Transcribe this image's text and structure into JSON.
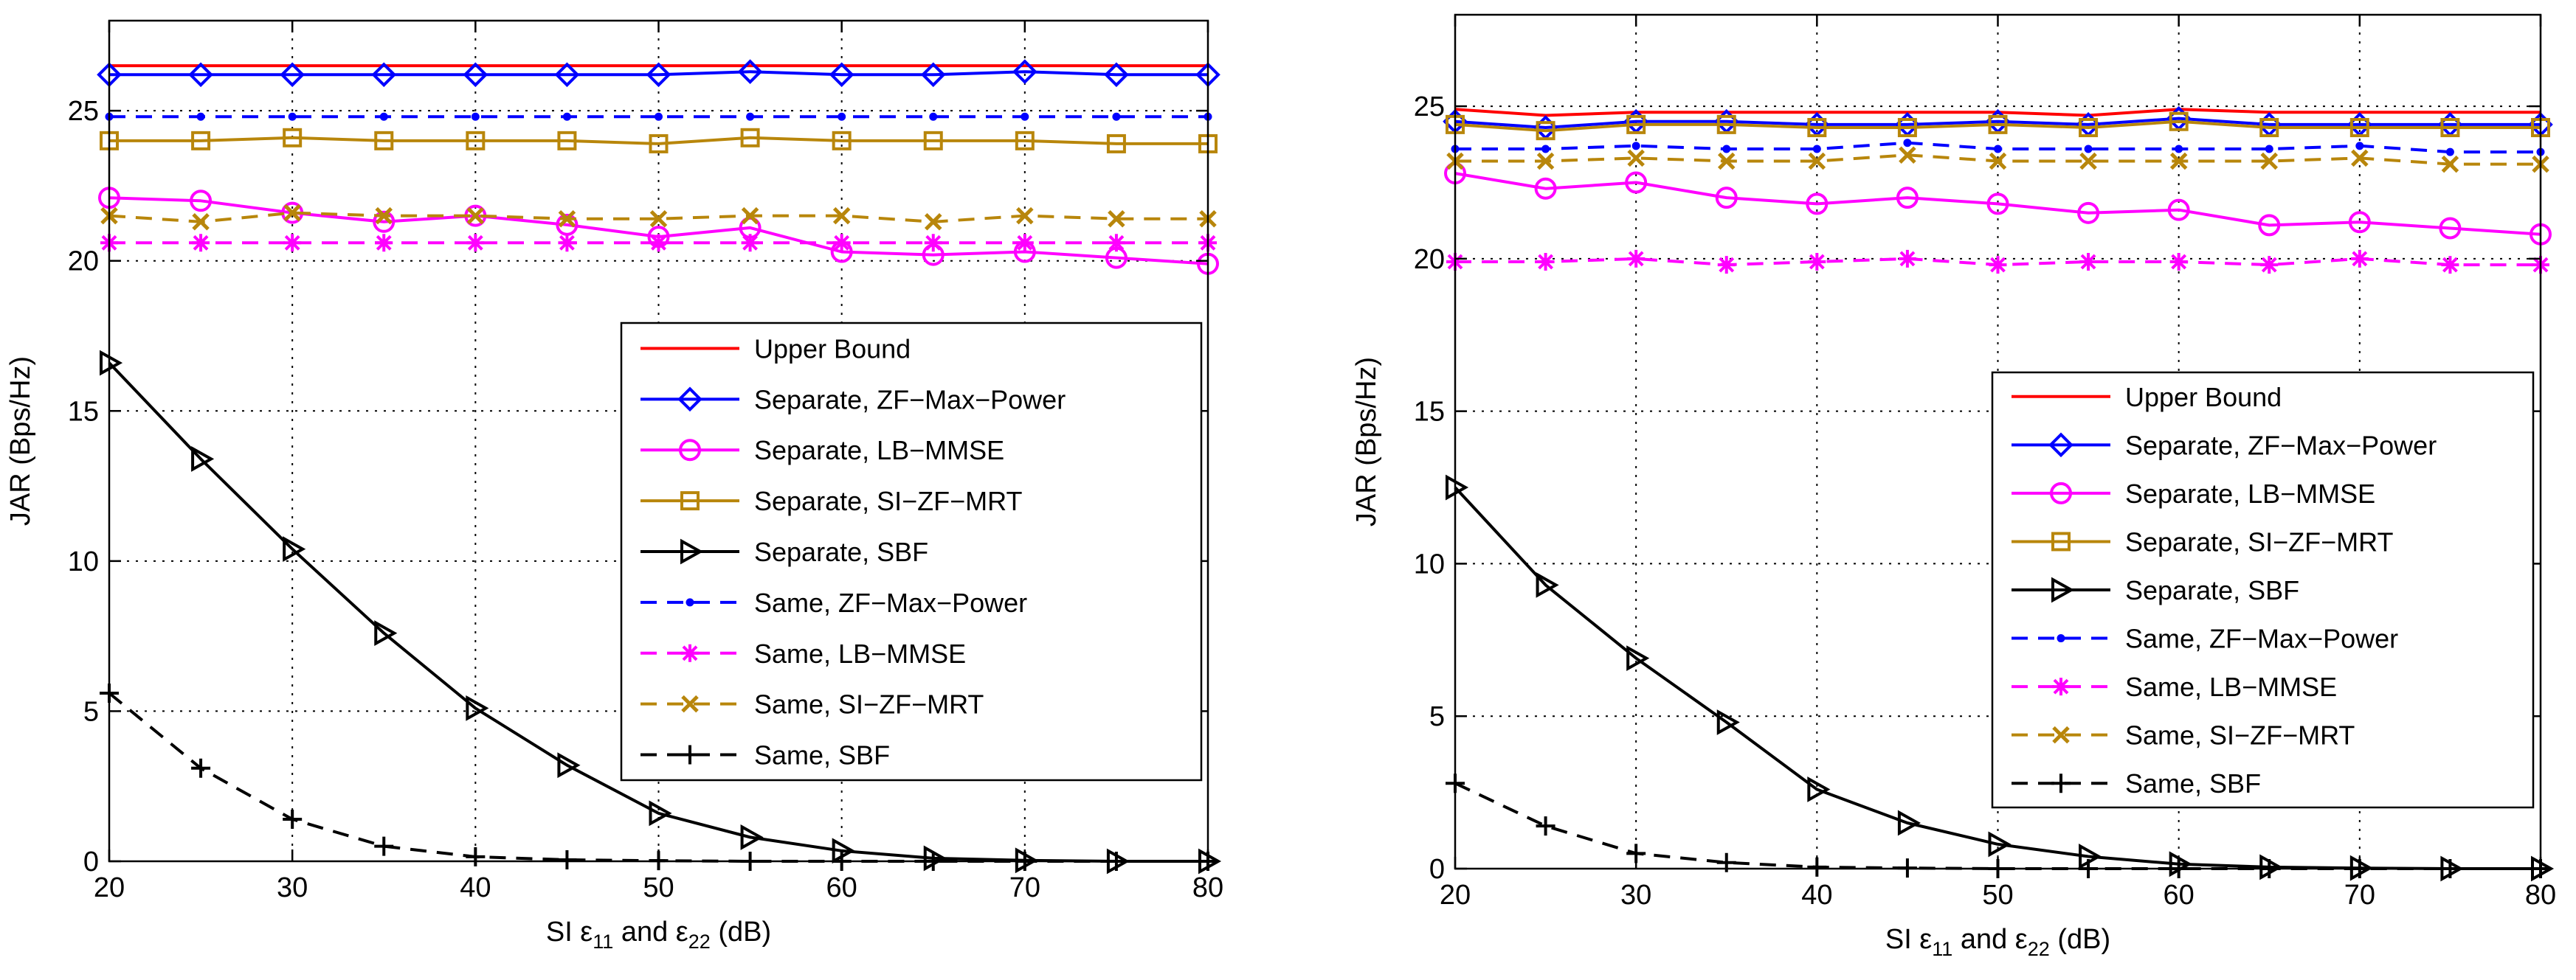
{
  "colors": {
    "upper_bound": "#ff0000",
    "zf_max_power": "#0000ff",
    "lb_mmse": "#ff00ff",
    "si_zf_mrt": "#b8860b",
    "sbf": "#000000",
    "grid": "#000000"
  },
  "chart_data": [
    {
      "type": "line",
      "panel": "left",
      "xlabel_prefix": "SI ε",
      "xlabel_sub1": "11",
      "xlabel_mid": " and ε",
      "xlabel_sub2": "22",
      "xlabel_suffix": " (dB)",
      "ylabel": "JAR (Bps/Hz)",
      "xlim": [
        20,
        80
      ],
      "ylim": [
        0,
        28
      ],
      "xticks": [
        20,
        30,
        40,
        50,
        60,
        70,
        80
      ],
      "yticks": [
        0,
        5,
        10,
        15,
        20,
        25
      ],
      "grid": true,
      "legend_position": "center-right",
      "series": [
        {
          "name": "Upper Bound",
          "style": "solid",
          "color_key": "upper_bound",
          "marker": "none",
          "x": [
            20,
            25,
            30,
            35,
            40,
            45,
            50,
            55,
            60,
            65,
            70,
            75,
            80
          ],
          "y": [
            26.5,
            26.5,
            26.5,
            26.5,
            26.5,
            26.5,
            26.5,
            26.5,
            26.5,
            26.5,
            26.5,
            26.5,
            26.5
          ]
        },
        {
          "name": "Separate, ZF−Max−Power",
          "style": "solid",
          "color_key": "zf_max_power",
          "marker": "diamond",
          "x": [
            20,
            25,
            30,
            35,
            40,
            45,
            50,
            55,
            60,
            65,
            70,
            75,
            80
          ],
          "y": [
            26.2,
            26.2,
            26.2,
            26.2,
            26.2,
            26.2,
            26.2,
            26.3,
            26.2,
            26.2,
            26.3,
            26.2,
            26.2
          ]
        },
        {
          "name": "Separate, LB−MMSE",
          "style": "solid",
          "color_key": "lb_mmse",
          "marker": "circle",
          "x": [
            20,
            25,
            30,
            35,
            40,
            45,
            50,
            55,
            60,
            65,
            70,
            75,
            80
          ],
          "y": [
            22.1,
            22.0,
            21.6,
            21.3,
            21.5,
            21.2,
            20.8,
            21.1,
            20.3,
            20.2,
            20.3,
            20.1,
            19.9
          ]
        },
        {
          "name": "Separate, SI−ZF−MRT",
          "style": "solid",
          "color_key": "si_zf_mrt",
          "marker": "square",
          "x": [
            20,
            25,
            30,
            35,
            40,
            45,
            50,
            55,
            60,
            65,
            70,
            75,
            80
          ],
          "y": [
            24.0,
            24.0,
            24.1,
            24.0,
            24.0,
            24.0,
            23.9,
            24.1,
            24.0,
            24.0,
            24.0,
            23.9,
            23.9
          ]
        },
        {
          "name": "Separate, SBF",
          "style": "solid",
          "color_key": "sbf",
          "marker": "triangle-right",
          "x": [
            20,
            25,
            30,
            35,
            40,
            45,
            50,
            55,
            60,
            65,
            70,
            75,
            80
          ],
          "y": [
            16.6,
            13.4,
            10.4,
            7.6,
            5.1,
            3.2,
            1.6,
            0.8,
            0.35,
            0.1,
            0.03,
            0.0,
            0.0
          ]
        },
        {
          "name": "Same, ZF−Max−Power",
          "style": "dashed",
          "color_key": "zf_max_power",
          "marker": "point",
          "x": [
            20,
            25,
            30,
            35,
            40,
            45,
            50,
            55,
            60,
            65,
            70,
            75,
            80
          ],
          "y": [
            24.8,
            24.8,
            24.8,
            24.8,
            24.8,
            24.8,
            24.8,
            24.8,
            24.8,
            24.8,
            24.8,
            24.8,
            24.8
          ]
        },
        {
          "name": "Same, LB−MMSE",
          "style": "dashed",
          "color_key": "lb_mmse",
          "marker": "asterisk",
          "x": [
            20,
            25,
            30,
            35,
            40,
            45,
            50,
            55,
            60,
            65,
            70,
            75,
            80
          ],
          "y": [
            20.6,
            20.6,
            20.6,
            20.6,
            20.6,
            20.6,
            20.6,
            20.6,
            20.6,
            20.6,
            20.6,
            20.6,
            20.6
          ]
        },
        {
          "name": "Same, SI−ZF−MRT",
          "style": "dashed",
          "color_key": "si_zf_mrt",
          "marker": "x",
          "x": [
            20,
            25,
            30,
            35,
            40,
            45,
            50,
            55,
            60,
            65,
            70,
            75,
            80
          ],
          "y": [
            21.5,
            21.3,
            21.6,
            21.5,
            21.5,
            21.4,
            21.4,
            21.5,
            21.5,
            21.3,
            21.5,
            21.4,
            21.4
          ]
        },
        {
          "name": "Same, SBF",
          "style": "dashed",
          "color_key": "sbf",
          "marker": "plus",
          "x": [
            20,
            25,
            30,
            35,
            40,
            45,
            50,
            55,
            60,
            65,
            70,
            75,
            80
          ],
          "y": [
            5.6,
            3.1,
            1.4,
            0.5,
            0.15,
            0.05,
            0.02,
            0.0,
            0.0,
            0.0,
            0.0,
            0.0,
            0.0
          ]
        }
      ]
    },
    {
      "type": "line",
      "panel": "right",
      "xlabel_prefix": "SI ε",
      "xlabel_sub1": "11",
      "xlabel_mid": " and ε",
      "xlabel_sub2": "22",
      "xlabel_suffix": " (dB)",
      "ylabel": "JAR (Bps/Hz)",
      "xlim": [
        20,
        80
      ],
      "ylim": [
        0,
        28
      ],
      "xticks": [
        20,
        30,
        40,
        50,
        60,
        70,
        80
      ],
      "yticks": [
        0,
        5,
        10,
        15,
        20,
        25
      ],
      "grid": true,
      "legend_position": "center-right",
      "series": [
        {
          "name": "Upper Bound",
          "style": "solid",
          "color_key": "upper_bound",
          "marker": "none",
          "x": [
            20,
            25,
            30,
            35,
            40,
            45,
            50,
            55,
            60,
            65,
            70,
            75,
            80
          ],
          "y": [
            24.9,
            24.7,
            24.8,
            24.8,
            24.8,
            24.8,
            24.8,
            24.7,
            24.9,
            24.8,
            24.8,
            24.8,
            24.8
          ]
        },
        {
          "name": "Separate, ZF−Max−Power",
          "style": "solid",
          "color_key": "zf_max_power",
          "marker": "diamond",
          "x": [
            20,
            25,
            30,
            35,
            40,
            45,
            50,
            55,
            60,
            65,
            70,
            75,
            80
          ],
          "y": [
            24.5,
            24.3,
            24.5,
            24.5,
            24.4,
            24.4,
            24.5,
            24.4,
            24.6,
            24.4,
            24.4,
            24.4,
            24.4
          ]
        },
        {
          "name": "Separate, LB−MMSE",
          "style": "solid",
          "color_key": "lb_mmse",
          "marker": "circle",
          "x": [
            20,
            25,
            30,
            35,
            40,
            45,
            50,
            55,
            60,
            65,
            70,
            75,
            80
          ],
          "y": [
            22.8,
            22.3,
            22.5,
            22.0,
            21.8,
            22.0,
            21.8,
            21.5,
            21.6,
            21.1,
            21.2,
            21.0,
            20.8
          ]
        },
        {
          "name": "Separate, SI−ZF−MRT",
          "style": "solid",
          "color_key": "si_zf_mrt",
          "marker": "square",
          "x": [
            20,
            25,
            30,
            35,
            40,
            45,
            50,
            55,
            60,
            65,
            70,
            75,
            80
          ],
          "y": [
            24.4,
            24.2,
            24.4,
            24.4,
            24.3,
            24.3,
            24.4,
            24.3,
            24.5,
            24.3,
            24.3,
            24.3,
            24.3
          ]
        },
        {
          "name": "Separate, SBF",
          "style": "solid",
          "color_key": "sbf",
          "marker": "triangle-right",
          "x": [
            20,
            25,
            30,
            35,
            40,
            45,
            50,
            55,
            60,
            65,
            70,
            75,
            80
          ],
          "y": [
            12.5,
            9.3,
            6.9,
            4.8,
            2.6,
            1.5,
            0.8,
            0.4,
            0.15,
            0.05,
            0.02,
            0.0,
            0.0
          ]
        },
        {
          "name": "Same, ZF−Max−Power",
          "style": "dashed",
          "color_key": "zf_max_power",
          "marker": "point",
          "x": [
            20,
            25,
            30,
            35,
            40,
            45,
            50,
            55,
            60,
            65,
            70,
            75,
            80
          ],
          "y": [
            23.6,
            23.6,
            23.7,
            23.6,
            23.6,
            23.8,
            23.6,
            23.6,
            23.6,
            23.6,
            23.7,
            23.5,
            23.5
          ]
        },
        {
          "name": "Same, LB−MMSE",
          "style": "dashed",
          "color_key": "lb_mmse",
          "marker": "asterisk",
          "x": [
            20,
            25,
            30,
            35,
            40,
            45,
            50,
            55,
            60,
            65,
            70,
            75,
            80
          ],
          "y": [
            19.9,
            19.9,
            20.0,
            19.8,
            19.9,
            20.0,
            19.8,
            19.9,
            19.9,
            19.8,
            20.0,
            19.8,
            19.8
          ]
        },
        {
          "name": "Same, SI−ZF−MRT",
          "style": "dashed",
          "color_key": "si_zf_mrt",
          "marker": "x",
          "x": [
            20,
            25,
            30,
            35,
            40,
            45,
            50,
            55,
            60,
            65,
            70,
            75,
            80
          ],
          "y": [
            23.2,
            23.2,
            23.3,
            23.2,
            23.2,
            23.4,
            23.2,
            23.2,
            23.2,
            23.2,
            23.3,
            23.1,
            23.1
          ]
        },
        {
          "name": "Same, SBF",
          "style": "dashed",
          "color_key": "sbf",
          "marker": "plus",
          "x": [
            20,
            25,
            30,
            35,
            40,
            45,
            50,
            55,
            60,
            65,
            70,
            75,
            80
          ],
          "y": [
            2.8,
            1.4,
            0.5,
            0.2,
            0.05,
            0.02,
            0.0,
            0.0,
            0.0,
            0.0,
            0.0,
            0.0,
            0.0
          ]
        }
      ]
    }
  ]
}
